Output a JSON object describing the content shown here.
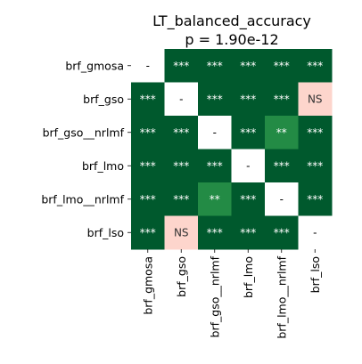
{
  "chart_data": {
    "type": "heatmap",
    "title": "LT_balanced_accuracy",
    "subtitle": "p = 1.90e-12",
    "rows": [
      "brf_gmosa",
      "brf_gso",
      "brf_gso__nrlmf",
      "brf_lmo",
      "brf_lmo__nrlmf",
      "brf_lso"
    ],
    "columns": [
      "brf_gmosa",
      "brf_gso",
      "brf_gso__nrlmf",
      "brf_lmo",
      "brf_lmo__nrlmf",
      "brf_lso"
    ],
    "cells": [
      [
        "-",
        "***",
        "***",
        "***",
        "***",
        "***"
      ],
      [
        "***",
        "-",
        "***",
        "***",
        "***",
        "NS"
      ],
      [
        "***",
        "***",
        "-",
        "***",
        "**",
        "***"
      ],
      [
        "***",
        "***",
        "***",
        "-",
        "***",
        "***"
      ],
      [
        "***",
        "***",
        "**",
        "***",
        "-",
        "***"
      ],
      [
        "***",
        "NS",
        "***",
        "***",
        "***",
        "-"
      ]
    ],
    "colors": {
      "***": "#00592d",
      "**": "#238b45",
      "NS": "#fdd5cc",
      "-": "#ffffff"
    },
    "text_colors": {
      "***": "#ffffff",
      "**": "#ffffff",
      "NS": "#333333",
      "-": "#000000"
    }
  }
}
